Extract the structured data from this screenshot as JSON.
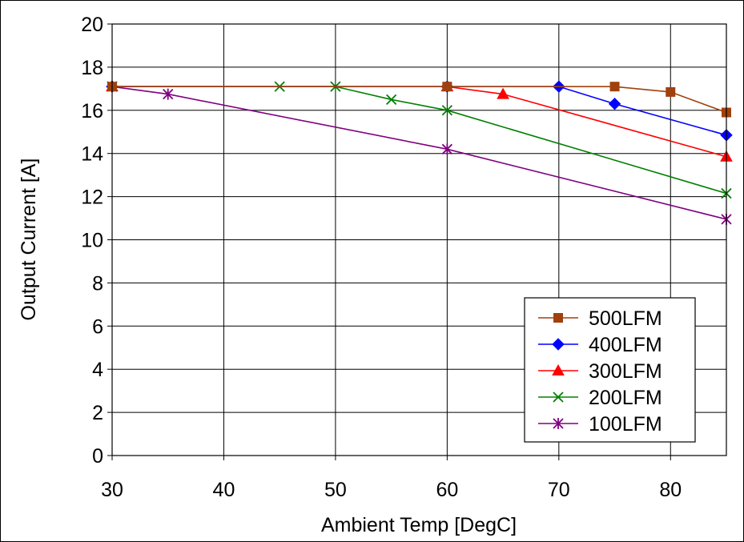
{
  "chart_data": {
    "type": "line",
    "xlabel": "Ambient Temp [DegC]",
    "ylabel": "Output Current [A]",
    "xlim": [
      30,
      85
    ],
    "ylim": [
      0,
      20
    ],
    "xticks": [
      "30",
      "40",
      "50",
      "60",
      "70",
      "80"
    ],
    "yticks": [
      "0",
      "2",
      "4",
      "6",
      "8",
      "10",
      "12",
      "14",
      "16",
      "18",
      "20"
    ],
    "grid": true,
    "legend_position": "bottom-right",
    "series": [
      {
        "name": "500LFM",
        "color": "#A0410D",
        "marker": "square",
        "x": [
          30,
          60,
          75,
          80,
          85
        ],
        "y": [
          17.1,
          17.1,
          17.1,
          16.85,
          15.9
        ]
      },
      {
        "name": "400LFM",
        "color": "#0000FF",
        "marker": "diamond",
        "x": [
          30,
          60,
          70,
          75,
          85
        ],
        "y": [
          17.1,
          17.1,
          17.1,
          16.3,
          14.85
        ]
      },
      {
        "name": "300LFM",
        "color": "#FF0000",
        "marker": "triangle",
        "x": [
          30,
          60,
          65,
          85
        ],
        "y": [
          17.1,
          17.1,
          16.75,
          13.85
        ]
      },
      {
        "name": "200LFM",
        "color": "#008000",
        "marker": "x",
        "x": [
          30,
          45,
          50,
          55,
          60,
          85
        ],
        "y": [
          17.1,
          17.1,
          17.1,
          16.5,
          16.0,
          12.15
        ]
      },
      {
        "name": "100LFM",
        "color": "#800080",
        "marker": "star",
        "x": [
          30,
          35,
          60,
          85
        ],
        "y": [
          17.1,
          16.75,
          14.2,
          10.95
        ]
      }
    ]
  }
}
